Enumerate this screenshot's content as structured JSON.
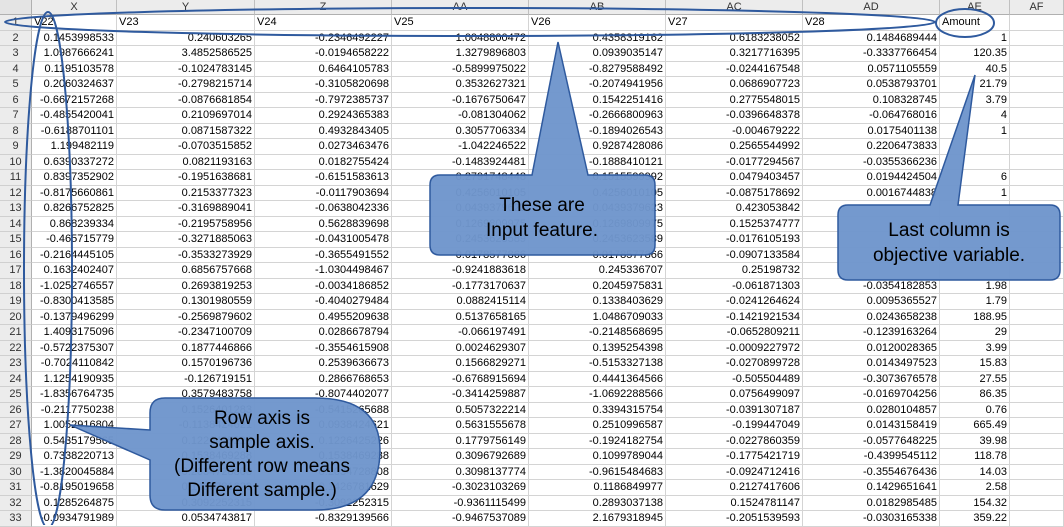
{
  "columns": [
    "X",
    "Y",
    "Z",
    "AA",
    "AB",
    "AC",
    "AD",
    "AE",
    "AF"
  ],
  "header_row": [
    "V22",
    "V23",
    "V24",
    "V25",
    "V26",
    "V27",
    "V28",
    "Amount",
    ""
  ],
  "row_numbers": [
    1,
    2,
    3,
    4,
    5,
    6,
    7,
    8,
    9,
    10,
    11,
    12,
    13,
    14,
    15,
    16,
    17,
    18,
    19,
    20,
    21,
    22,
    23,
    24,
    25,
    26,
    27,
    28,
    29,
    30,
    31,
    32,
    33
  ],
  "rows": [
    [
      "0.1453998533",
      "0.240603265",
      "-0.2346492227",
      "1.0048800472",
      "0.4358319162",
      "0.6183238052",
      "0.1484689444",
      "1"
    ],
    [
      "1.0987666241",
      "3.4852586525",
      "-0.0194658222",
      "1.3279896803",
      "0.0939035147",
      "0.3217716395",
      "-0.3337766454",
      "120.35"
    ],
    [
      "0.1195103578",
      "-0.1024783145",
      "0.6464105783",
      "-0.5899975022",
      "-0.8279588492",
      "-0.0244167548",
      "0.0571105559",
      "40.5"
    ],
    [
      "0.2060324637",
      "-0.2798215714",
      "-0.3105820698",
      "0.3532627321",
      "-0.2074941956",
      "0.0686907723",
      "0.0538793701",
      "21.79"
    ],
    [
      "-0.6672157268",
      "-0.0876681854",
      "-0.7972385737",
      "-0.1676750647",
      "0.1542251416",
      "0.2775548015",
      "0.108328745",
      "3.79"
    ],
    [
      "-0.4855420041",
      "0.2109697014",
      "0.2924365383",
      "-0.081304062",
      "-0.2666800963",
      "-0.0396648378",
      "-0.064768016",
      "4"
    ],
    [
      "-0.6188701101",
      "0.0871587322",
      "0.4932843405",
      "0.3057706334",
      "-0.1894026543",
      "-0.004679222",
      "0.0175401138",
      "1"
    ],
    [
      "1.199482119",
      "-0.0703515852",
      "0.0273463476",
      "-1.042246522",
      "0.9287428086",
      "0.2565544992",
      "0.2206473833",
      ""
    ],
    [
      "0.6390337272",
      "0.0821193163",
      "0.0182755424",
      "-0.1483924481",
      "-0.1888410121",
      "-0.0177294567",
      "-0.0355366236",
      ""
    ],
    [
      "0.8397352902",
      "-0.1951638681",
      "-0.6151583613",
      "0.2791748448",
      "0.1515599992",
      "0.0479403457",
      "0.0194424504",
      "6"
    ],
    [
      "-0.8175660861",
      "0.2153377323",
      "-0.0117903694",
      "0.4256010105",
      "0.4256010105",
      "-0.0875178692",
      "0.0016744838",
      "1"
    ],
    [
      "0.8266752825",
      "-0.3169889041",
      "-0.0638042336",
      "0.0439379623",
      "0.0439379623",
      "0.423053842",
      "",
      ""
    ],
    [
      "0.868239334",
      "-0.2195758956",
      "0.5628839698",
      "0.1269809975",
      "0.1269809975",
      "0.1525374777",
      "",
      ""
    ],
    [
      "-0.465715779",
      "-0.3271885063",
      "-0.0431005478",
      "0.2453623589",
      "0.2453623589",
      "-0.0176105193",
      "",
      ""
    ],
    [
      "-0.2164445105",
      "-0.3533273929",
      "-0.3655491552",
      "-0.0178577866",
      "-0.0178577866",
      "-0.0907133584",
      "",
      ""
    ],
    [
      "0.1632402407",
      "0.6856757668",
      "-1.0304498467",
      "-0.9241883618",
      "0.245336707",
      "0.25198732",
      "",
      ""
    ],
    [
      "-1.0252746557",
      "0.2693819253",
      "-0.0034186852",
      "-0.1773170637",
      "0.2045975831",
      "-0.061871303",
      "-0.0354182853",
      "1.98"
    ],
    [
      "-0.8300413585",
      "0.1301980559",
      "-0.4040279484",
      "0.0882415114",
      "0.1338403629",
      "-0.0241264624",
      "0.0095365527",
      "1.79"
    ],
    [
      "-0.1379496299",
      "-0.2569879602",
      "0.4955209638",
      "0.5137658165",
      "1.0486709033",
      "-0.1421921534",
      "0.0243658238",
      "188.95"
    ],
    [
      "1.4093175096",
      "-0.2347100709",
      "0.0286678794",
      "-0.066197491",
      "-0.2148568695",
      "-0.0652809211",
      "-0.1239163264",
      "29"
    ],
    [
      "-0.5722375307",
      "0.1877446866",
      "-0.3554615908",
      "0.0024629307",
      "0.1395254398",
      "-0.0009227972",
      "0.0120028365",
      "3.99"
    ],
    [
      "-0.7024110842",
      "0.1570196736",
      "0.2539636673",
      "0.1566829271",
      "-0.5153327138",
      "-0.0270899728",
      "0.0143497523",
      "15.83"
    ],
    [
      "1.1254190935",
      "-0.126719151",
      "0.2866768653",
      "-0.6768915694",
      "0.4441364566",
      "-0.505504489",
      "-0.3073676578",
      "27.55"
    ],
    [
      "-1.8356764735",
      "0.3579483758",
      "-0.8074402077",
      "-0.3414259887",
      "-1.0692288566",
      "0.0756499097",
      "-0.0169704256",
      "86.35"
    ],
    [
      "-0.2117750238",
      "0.1526401283",
      "-0.5415265688",
      "0.5057322214",
      "0.3394315754",
      "-0.0391307187",
      "0.0280104857",
      "0.76"
    ],
    [
      "1.0052916804",
      "-0.1138424621",
      "0.0938424621",
      "0.5631555678",
      "0.2510996587",
      "-0.199447049",
      "0.0143158419",
      "665.49"
    ],
    [
      "0.5435179565",
      "0.1226425226",
      "0.1226425226",
      "0.1779756149",
      "-0.1924182754",
      "-0.0227860359",
      "-0.0577648225",
      "39.98"
    ],
    [
      "0.7338220713",
      "0.1538469288",
      "0.1538469288",
      "0.3096792689",
      "0.1099789044",
      "-0.1775421719",
      "-0.4399545112",
      "118.78"
    ],
    [
      "-1.3820045884",
      "0.2034728808",
      "0.2034728808",
      "0.3098137774",
      "-0.9615484683",
      "-0.0924712416",
      "-0.3554676436",
      "14.03"
    ],
    [
      "-0.8195019658",
      "0.1426781629",
      "0.1426781629",
      "-0.3023103269",
      "0.1186849977",
      "0.2127417606",
      "0.1429651641",
      "2.58"
    ],
    [
      "0.1285264875",
      "0.3092252315",
      "-0.3092252315",
      "-0.9361115499",
      "0.2893037138",
      "0.1524781147",
      "0.0182985485",
      "154.32"
    ],
    [
      "-0.0934791989",
      "0.0534743817",
      "-0.8329139566",
      "-0.9467537089",
      "2.1679318945",
      "-0.2051539593",
      "-0.0303165338",
      "359.22"
    ]
  ],
  "annotations": {
    "input_feature": [
      "These are",
      "Input feature."
    ],
    "objective": [
      "Last column is",
      "objective variable."
    ],
    "row_axis": [
      "Row axis is",
      "sample axis.",
      "(Different row means",
      "Different sample.)"
    ]
  },
  "colors": {
    "callout_fill": "#6f96cc",
    "callout_stroke": "#2f5a9e",
    "ellipse": "#2f5a9e"
  }
}
